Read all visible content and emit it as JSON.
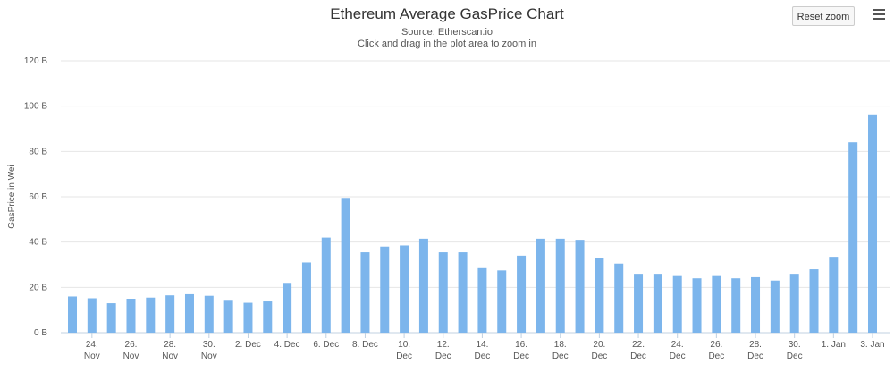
{
  "chart_data": {
    "type": "bar",
    "title": "Ethereum Average GasPrice Chart",
    "subtitle": "Source: Etherscan.io",
    "subtitle2": "Click and drag in the plot area to zoom in",
    "ylabel": "GasPrice in Wei",
    "xlabel": "",
    "ylim": [
      0,
      120
    ],
    "yticks": [
      0,
      20,
      40,
      60,
      80,
      100,
      120
    ],
    "ytick_labels": [
      "0 B",
      "20 B",
      "40 B",
      "60 B",
      "80 B",
      "100 B",
      "120 B"
    ],
    "x_labels": [
      {
        "index": 1,
        "line1": "24.",
        "line2": "Nov"
      },
      {
        "index": 3,
        "line1": "26.",
        "line2": "Nov"
      },
      {
        "index": 5,
        "line1": "28.",
        "line2": "Nov"
      },
      {
        "index": 7,
        "line1": "30.",
        "line2": "Nov"
      },
      {
        "index": 9,
        "line1": "2. Dec",
        "line2": ""
      },
      {
        "index": 11,
        "line1": "4. Dec",
        "line2": ""
      },
      {
        "index": 13,
        "line1": "6. Dec",
        "line2": ""
      },
      {
        "index": 15,
        "line1": "8. Dec",
        "line2": ""
      },
      {
        "index": 17,
        "line1": "10.",
        "line2": "Dec"
      },
      {
        "index": 19,
        "line1": "12.",
        "line2": "Dec"
      },
      {
        "index": 21,
        "line1": "14.",
        "line2": "Dec"
      },
      {
        "index": 23,
        "line1": "16.",
        "line2": "Dec"
      },
      {
        "index": 25,
        "line1": "18.",
        "line2": "Dec"
      },
      {
        "index": 27,
        "line1": "20.",
        "line2": "Dec"
      },
      {
        "index": 29,
        "line1": "22.",
        "line2": "Dec"
      },
      {
        "index": 31,
        "line1": "24.",
        "line2": "Dec"
      },
      {
        "index": 33,
        "line1": "26.",
        "line2": "Dec"
      },
      {
        "index": 35,
        "line1": "28.",
        "line2": "Dec"
      },
      {
        "index": 37,
        "line1": "30.",
        "line2": "Dec"
      },
      {
        "index": 39,
        "line1": "1. Jan",
        "line2": ""
      },
      {
        "index": 41,
        "line1": "3. Jan",
        "line2": ""
      }
    ],
    "values": [
      16,
      15.2,
      13,
      15,
      15.5,
      16.5,
      17,
      16.3,
      14.5,
      13.2,
      13.8,
      22,
      31,
      42,
      59.5,
      35.5,
      38,
      38.5,
      41.5,
      35.5,
      35.5,
      28.5,
      27.5,
      34,
      41.5,
      41.5,
      41,
      33,
      30.5,
      26,
      26,
      25,
      24,
      25,
      24,
      24.5,
      23,
      26,
      28,
      33.5,
      84,
      96
    ],
    "bar_color": "#7cb5ec",
    "grid": true,
    "legend": "none"
  },
  "controls": {
    "reset_zoom_label": "Reset zoom",
    "menu_icon": "hamburger-menu-icon"
  }
}
